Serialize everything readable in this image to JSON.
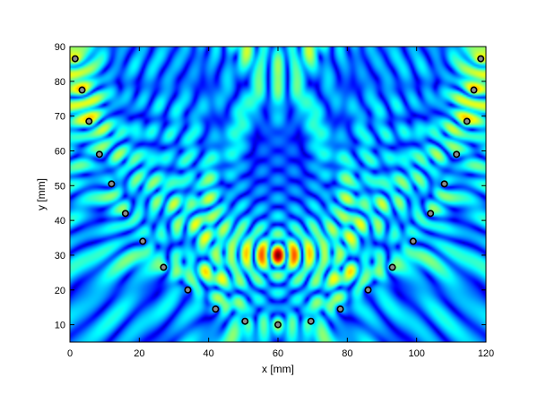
{
  "chart_data": {
    "type": "heatmap",
    "title": "",
    "xlabel": "x [mm]",
    "ylabel": "y [mm]",
    "xlim": [
      0,
      120
    ],
    "ylim": [
      5,
      90
    ],
    "xticks": [
      0,
      20,
      40,
      60,
      80,
      100,
      120
    ],
    "yticks": [
      10,
      20,
      30,
      40,
      50,
      60,
      70,
      80,
      90
    ],
    "xtick_labels": [
      "0",
      "20",
      "40",
      "60",
      "80",
      "100",
      "120"
    ],
    "ytick_labels": [
      "10",
      "20",
      "30",
      "40",
      "50",
      "60",
      "70",
      "80",
      "90"
    ],
    "grid": false,
    "legend": "none",
    "colormap": "jet",
    "focus_point": {
      "x": 60,
      "y": 30
    },
    "transducers": [
      {
        "x": 1.5,
        "y": 86.5
      },
      {
        "x": 3.5,
        "y": 77.5
      },
      {
        "x": 5.5,
        "y": 68.5
      },
      {
        "x": 8.5,
        "y": 59
      },
      {
        "x": 12,
        "y": 50.5
      },
      {
        "x": 16,
        "y": 42
      },
      {
        "x": 21,
        "y": 34
      },
      {
        "x": 27,
        "y": 26.5
      },
      {
        "x": 34,
        "y": 20
      },
      {
        "x": 42,
        "y": 14.5
      },
      {
        "x": 50.5,
        "y": 11
      },
      {
        "x": 60,
        "y": 10
      },
      {
        "x": 69.5,
        "y": 11
      },
      {
        "x": 78,
        "y": 14.5
      },
      {
        "x": 86,
        "y": 20
      },
      {
        "x": 93,
        "y": 26.5
      },
      {
        "x": 99,
        "y": 34
      },
      {
        "x": 104,
        "y": 42
      },
      {
        "x": 108,
        "y": 50.5
      },
      {
        "x": 111.5,
        "y": 59
      },
      {
        "x": 114.5,
        "y": 68.5
      },
      {
        "x": 116.5,
        "y": 77.5
      },
      {
        "x": 118.5,
        "y": 86.5
      }
    ],
    "colors": {
      "background": "#00007f",
      "marker_fill": "#8c8c8c",
      "marker_edge": "#000000",
      "axis": "#000000"
    }
  }
}
